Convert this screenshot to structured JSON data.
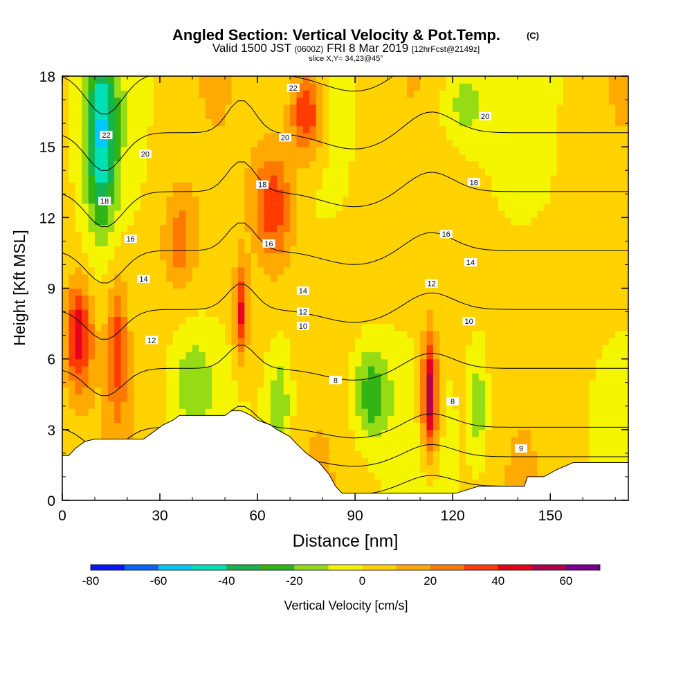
{
  "chart_data": {
    "type": "heatmap",
    "title": "Angled Section: Vertical Velocity & Pot.Temp.",
    "title_unit": "(C)",
    "subtitle_parts": [
      "Valid 1500 JST",
      "(0600Z)",
      "FRI 8 Mar 2019",
      "[12hrFcst@2149z]"
    ],
    "slice_label": "slice X,Y= 34,23@45°",
    "xlabel": "Distance [nm]",
    "ylabel": "Height [Kft MSL]",
    "xlim": [
      0,
      174
    ],
    "ylim": [
      0,
      18
    ],
    "x_ticks": [
      0,
      30,
      60,
      90,
      120,
      150
    ],
    "x_tick_labels": [
      "0",
      "30",
      "60",
      "90",
      "120",
      "150"
    ],
    "y_ticks": [
      0,
      3,
      6,
      9,
      12,
      15,
      18
    ],
    "y_tick_labels": [
      "0",
      "3",
      "6",
      "9",
      "12",
      "15",
      "18"
    ],
    "colorbar": {
      "label": "Vertical Velocity [cm/s]",
      "bounds": [
        -80,
        70
      ],
      "step": 10,
      "tick_values": [
        -80,
        -60,
        -40,
        -20,
        0,
        20,
        40,
        60
      ],
      "tick_labels": [
        "-80",
        "-60",
        "-40",
        "-20",
        "0",
        "20",
        "40",
        "60"
      ],
      "colors": [
        "#0a14ff",
        "#0a64ff",
        "#00c8ff",
        "#00e0b4",
        "#14b450",
        "#32b414",
        "#96dc14",
        "#f5f500",
        "#ffd200",
        "#ffaa00",
        "#ff7800",
        "#ff3c00",
        "#e6001e",
        "#b40046",
        "#78008c"
      ]
    },
    "series": [
      {
        "name": "Vertical Velocity [cm/s]",
        "type": "filled-contour",
        "grid_note": "field described by centers",
        "cells": [
          {
            "x": 5,
            "y": 7.0,
            "value": 45,
            "sx": 4,
            "sy": 2.2
          },
          {
            "x": 17,
            "y": 6.5,
            "value": 30,
            "sx": 3,
            "sy": 3
          },
          {
            "x": 12,
            "y": 15.5,
            "value": -50,
            "sx": 5,
            "sy": 4
          },
          {
            "x": 36,
            "y": 11.0,
            "value": 22,
            "sx": 5,
            "sy": 2
          },
          {
            "x": 40,
            "y": 5.0,
            "value": -18,
            "sx": 6,
            "sy": 2
          },
          {
            "x": 55,
            "y": 8.0,
            "value": 40,
            "sx": 2,
            "sy": 2
          },
          {
            "x": 65,
            "y": 12.5,
            "value": 35,
            "sx": 6,
            "sy": 2.5
          },
          {
            "x": 75,
            "y": 16.5,
            "value": 42,
            "sx": 5,
            "sy": 2
          },
          {
            "x": 67,
            "y": 4.0,
            "value": -22,
            "sx": 4,
            "sy": 2.5
          },
          {
            "x": 95,
            "y": 4.5,
            "value": -30,
            "sx": 6,
            "sy": 2
          },
          {
            "x": 113,
            "y": 4.5,
            "value": 60,
            "sx": 2.5,
            "sy": 2.5
          },
          {
            "x": 128,
            "y": 4.0,
            "value": -20,
            "sx": 3,
            "sy": 2.5
          },
          {
            "x": 123,
            "y": 16.8,
            "value": -18,
            "sx": 8,
            "sy": 1.8
          }
        ]
      },
      {
        "name": "Pot.Temp. (C)",
        "type": "contour",
        "levels": [
          8,
          9,
          10,
          12,
          14,
          16,
          18,
          20,
          22
        ]
      }
    ],
    "contour_labels": [
      {
        "text": "22",
        "x": 13.5,
        "y": 15.5
      },
      {
        "text": "20",
        "x": 25.5,
        "y": 14.7
      },
      {
        "text": "18",
        "x": 13,
        "y": 12.7
      },
      {
        "text": "16",
        "x": 21,
        "y": 11.1
      },
      {
        "text": "14",
        "x": 25,
        "y": 9.4
      },
      {
        "text": "12",
        "x": 27.5,
        "y": 6.8
      },
      {
        "text": "22",
        "x": 71,
        "y": 17.5
      },
      {
        "text": "20",
        "x": 68.5,
        "y": 15.4
      },
      {
        "text": "18",
        "x": 61.5,
        "y": 13.4
      },
      {
        "text": "16",
        "x": 63.5,
        "y": 10.9
      },
      {
        "text": "14",
        "x": 74,
        "y": 8.9
      },
      {
        "text": "12",
        "x": 74,
        "y": 8.0
      },
      {
        "text": "10",
        "x": 74,
        "y": 7.4
      },
      {
        "text": "8",
        "x": 84,
        "y": 5.1
      },
      {
        "text": "20",
        "x": 130,
        "y": 16.3
      },
      {
        "text": "18",
        "x": 126.5,
        "y": 13.5
      },
      {
        "text": "16",
        "x": 118,
        "y": 11.3
      },
      {
        "text": "14",
        "x": 125.5,
        "y": 10.1
      },
      {
        "text": "12",
        "x": 113.5,
        "y": 9.2
      },
      {
        "text": "10",
        "x": 125,
        "y": 7.6
      },
      {
        "text": "8",
        "x": 120,
        "y": 4.2
      },
      {
        "text": "9",
        "x": 141,
        "y": 2.2
      }
    ],
    "terrain": [
      [
        0,
        1.9
      ],
      [
        2,
        1.9
      ],
      [
        4,
        2.2
      ],
      [
        7,
        2.5
      ],
      [
        10,
        2.6
      ],
      [
        20,
        2.6
      ],
      [
        25,
        2.6
      ],
      [
        28,
        2.9
      ],
      [
        31,
        3.2
      ],
      [
        34,
        3.4
      ],
      [
        36,
        3.6
      ],
      [
        50,
        3.6
      ],
      [
        52,
        3.8
      ],
      [
        55,
        3.8
      ],
      [
        58,
        3.6
      ],
      [
        60,
        3.4
      ],
      [
        64,
        3.2
      ],
      [
        66,
        3.0
      ],
      [
        70,
        2.7
      ],
      [
        72,
        2.4
      ],
      [
        75,
        2.0
      ],
      [
        79,
        1.6
      ],
      [
        82,
        1.1
      ],
      [
        84,
        0.6
      ],
      [
        86,
        0.3
      ],
      [
        93,
        0.3
      ],
      [
        121,
        0.3
      ],
      [
        128,
        0.6
      ],
      [
        142,
        0.6
      ],
      [
        143,
        1.0
      ],
      [
        148,
        1.0
      ],
      [
        152,
        1.3
      ],
      [
        157,
        1.6
      ],
      [
        174,
        1.6
      ]
    ],
    "grid": false,
    "legend": "bottom-colorbar"
  }
}
